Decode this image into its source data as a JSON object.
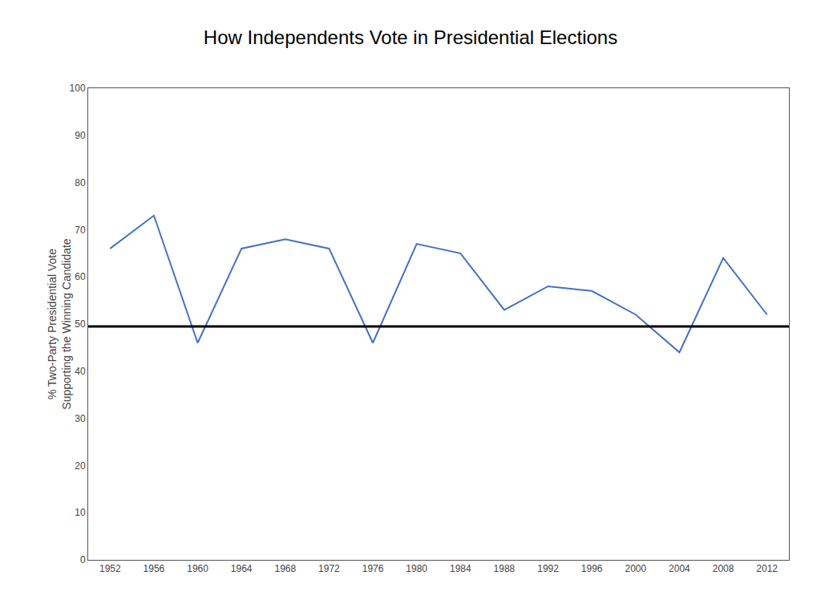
{
  "chart_data": {
    "type": "line",
    "title": "How Independents Vote in Presidential Elections",
    "ylabel": "% Two-Party Presidential Vote\nSupporting the Winning Candidate",
    "x": [
      1952,
      1956,
      1960,
      1964,
      1968,
      1972,
      1976,
      1980,
      1984,
      1988,
      1992,
      1996,
      2000,
      2004,
      2008,
      2012
    ],
    "values": [
      66,
      73,
      46,
      66,
      68,
      66,
      46,
      67,
      65,
      53,
      58,
      57,
      52,
      44,
      64,
      52
    ],
    "color": "#4472C4",
    "reference_line": {
      "value": 49.5,
      "color": "#000000"
    },
    "xlim": [
      1950,
      2014
    ],
    "xticks": [
      1952,
      1956,
      1960,
      1964,
      1968,
      1972,
      1976,
      1980,
      1984,
      1988,
      1992,
      1996,
      2000,
      2004,
      2008,
      2012
    ],
    "ylim": [
      0,
      100
    ],
    "yticks": [
      0,
      10,
      20,
      30,
      40,
      50,
      60,
      70,
      80,
      90,
      100
    ],
    "grid": false
  }
}
